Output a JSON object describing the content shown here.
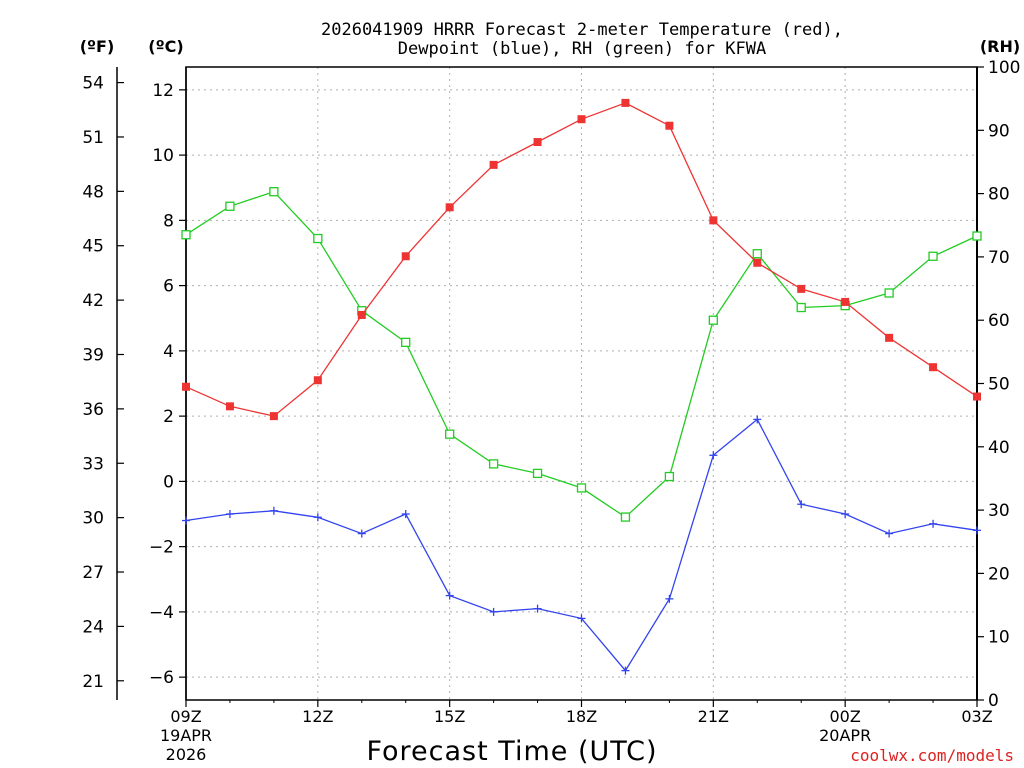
{
  "chart_data": {
    "type": "line",
    "title_line1": "2026041909 HRRR Forecast 2-meter Temperature (red),",
    "title_line2": "Dewpoint (blue), RH (green) for KFWA",
    "left_outer_unit": "(ºF)",
    "left_inner_unit": "(ºC)",
    "right_unit": "(RH)",
    "xlabel": "Forecast Time (UTC)",
    "credit": "coolwx.com/models",
    "x_range": [
      9,
      27
    ],
    "celsius_range": [
      -6.7,
      12.7
    ],
    "rh_range": [
      0,
      100
    ],
    "celsius_ticks": [
      12,
      10,
      8,
      6,
      4,
      2,
      0,
      -2,
      -4,
      -6
    ],
    "celsius_tick_labels": [
      "12",
      "10",
      "8",
      "6",
      "4",
      "2",
      "0",
      "−2",
      "−4",
      "−6"
    ],
    "fahrenheit_ticks": [
      54,
      51,
      48,
      45,
      42,
      39,
      36,
      33,
      30,
      27,
      24,
      21
    ],
    "fahrenheit_tick_labels": [
      "54",
      "51",
      "48",
      "45",
      "42",
      "39",
      "36",
      "33",
      "30",
      "27",
      "24",
      "21"
    ],
    "rh_ticks": [
      100,
      90,
      80,
      70,
      60,
      50,
      40,
      30,
      20,
      10,
      0
    ],
    "rh_tick_labels": [
      "100",
      "90",
      "80",
      "70",
      "60",
      "50",
      "40",
      "30",
      "20",
      "10",
      "0"
    ],
    "x_ticks": [
      9,
      12,
      15,
      18,
      21,
      24,
      27
    ],
    "x_tick_labels": [
      "09Z",
      "12Z",
      "15Z",
      "18Z",
      "21Z",
      "00Z",
      "03Z"
    ],
    "date_labels": [
      {
        "x": 9,
        "lines": [
          "19APR",
          "2026"
        ]
      },
      {
        "x": 24,
        "lines": [
          "20APR"
        ]
      }
    ],
    "hours": [
      9,
      10,
      11,
      12,
      13,
      14,
      15,
      16,
      17,
      18,
      19,
      20,
      21,
      22,
      23,
      24,
      25,
      26,
      27
    ],
    "series": [
      {
        "name": "Temperature",
        "units": "°C",
        "color": "#ee3333",
        "marker": "filled-square",
        "values": [
          2.9,
          2.3,
          2.0,
          3.1,
          5.1,
          6.9,
          8.4,
          9.7,
          10.4,
          11.1,
          11.6,
          10.9,
          8.0,
          6.7,
          5.9,
          5.5,
          4.4,
          3.5,
          2.6
        ]
      },
      {
        "name": "Dewpoint",
        "units": "°C",
        "color": "#3344ee",
        "marker": "plus",
        "values": [
          -1.2,
          -1.0,
          -0.9,
          -1.1,
          -1.6,
          -1.0,
          -3.5,
          -4.0,
          -3.9,
          -4.2,
          -5.8,
          -3.6,
          0.8,
          1.9,
          -0.7,
          -1.0,
          -1.6,
          -1.3,
          -1.5
        ]
      },
      {
        "name": "RH",
        "units": "%",
        "color": "#22cc22",
        "marker": "open-square",
        "values": [
          73.5,
          78.0,
          80.3,
          72.9,
          61.5,
          56.5,
          42.0,
          37.3,
          35.8,
          33.5,
          28.9,
          35.3,
          60.0,
          70.5,
          62.0,
          62.3,
          64.3,
          70.1,
          73.3
        ]
      }
    ]
  }
}
